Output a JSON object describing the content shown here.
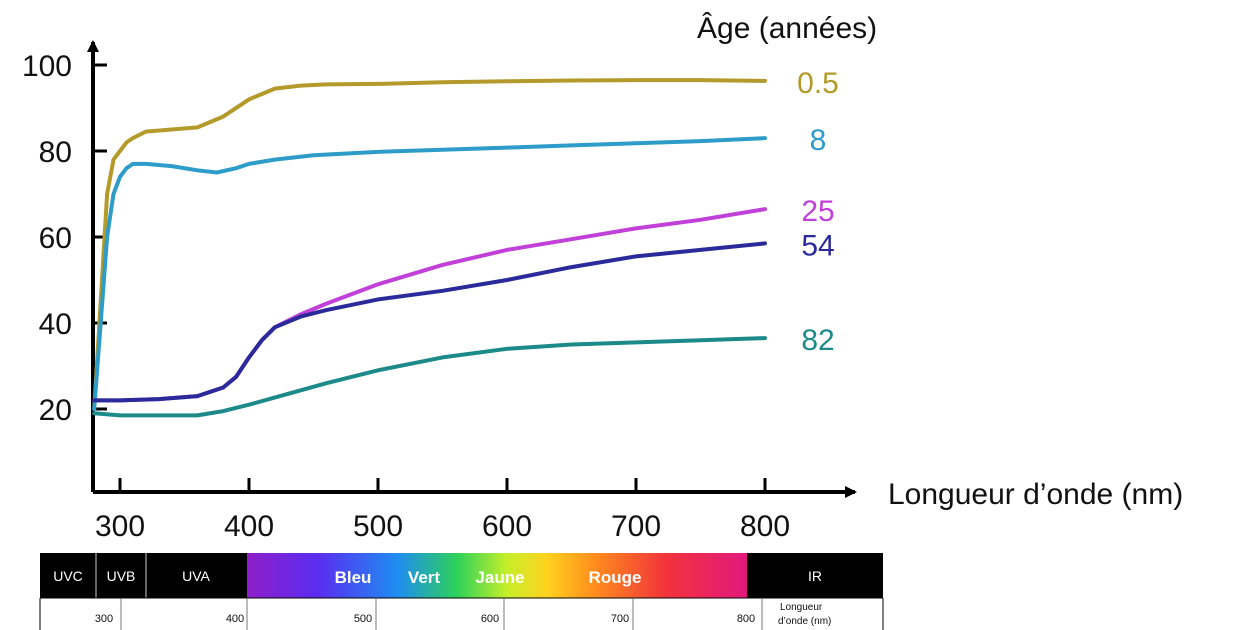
{
  "chart_data": {
    "type": "line",
    "title": "",
    "xlabel": "Longueur d’onde (nm)",
    "ylabel": "",
    "legend_title": "Âge (années)",
    "legend_placement": "right",
    "xlim": [
      275,
      840
    ],
    "ylim": [
      0,
      105
    ],
    "xticks": [
      300,
      400,
      500,
      600,
      700,
      800
    ],
    "yticks": [
      20,
      40,
      60,
      80,
      100
    ],
    "grid": false,
    "series": [
      {
        "name": "0.5",
        "color": "#b39a2a",
        "x": [
          280,
          285,
          290,
          295,
          300,
          305,
          310,
          320,
          340,
          360,
          380,
          400,
          420,
          440,
          460,
          500,
          550,
          600,
          650,
          700,
          750,
          800
        ],
        "y": [
          20,
          45,
          70,
          78,
          80,
          82,
          83,
          84.5,
          85,
          85.5,
          88,
          92,
          94.5,
          95.2,
          95.5,
          95.6,
          96,
          96.2,
          96.4,
          96.5,
          96.5,
          96.3
        ]
      },
      {
        "name": "8",
        "color": "#2d9cc9",
        "x": [
          280,
          285,
          290,
          295,
          300,
          305,
          310,
          320,
          340,
          360,
          375,
          390,
          400,
          420,
          450,
          500,
          550,
          600,
          650,
          700,
          750,
          800
        ],
        "y": [
          20,
          40,
          60,
          70,
          74,
          76,
          77,
          77,
          76.5,
          75.5,
          75,
          76,
          77,
          78,
          79,
          79.8,
          80.3,
          80.8,
          81.3,
          81.8,
          82.3,
          83
        ]
      },
      {
        "name": "25",
        "color": "#c040d8",
        "x": [
          280,
          300,
          330,
          360,
          380,
          390,
          400,
          410,
          420,
          440,
          460,
          500,
          550,
          600,
          650,
          700,
          750,
          800
        ],
        "y": [
          22,
          22,
          22.3,
          23,
          25,
          27.5,
          32,
          36,
          39,
          42,
          44.5,
          49,
          53.5,
          57,
          59.5,
          62,
          64,
          66.5
        ]
      },
      {
        "name": "54",
        "color": "#2a2a9a",
        "x": [
          280,
          300,
          330,
          360,
          380,
          390,
          400,
          410,
          420,
          440,
          460,
          500,
          550,
          600,
          650,
          700,
          750,
          800
        ],
        "y": [
          22,
          22,
          22.3,
          23,
          25,
          27.5,
          32,
          36,
          39,
          41.5,
          43,
          45.5,
          47.5,
          50,
          53,
          55.5,
          57,
          58.5
        ]
      },
      {
        "name": "82",
        "color": "#1d8a8a",
        "x": [
          280,
          300,
          330,
          360,
          380,
          400,
          430,
          460,
          500,
          550,
          600,
          650,
          700,
          750,
          800
        ],
        "y": [
          19,
          18.5,
          18.5,
          18.5,
          19.5,
          21,
          23.5,
          26,
          29,
          32,
          34,
          35,
          35.5,
          36,
          36.5
        ]
      }
    ]
  },
  "spectrum_bar": {
    "bands": [
      {
        "label": "UVC"
      },
      {
        "label": "UVB"
      },
      {
        "label": "UVA"
      },
      {
        "label": "Bleu"
      },
      {
        "label": "Vert"
      },
      {
        "label": "Jaune"
      },
      {
        "label": "Rouge"
      },
      {
        "label": "IR"
      }
    ],
    "ticks": [
      "300",
      "400",
      "500",
      "600",
      "700",
      "800"
    ],
    "unit_line1": "Longueur",
    "unit_line2": "d’onde (nm)"
  }
}
